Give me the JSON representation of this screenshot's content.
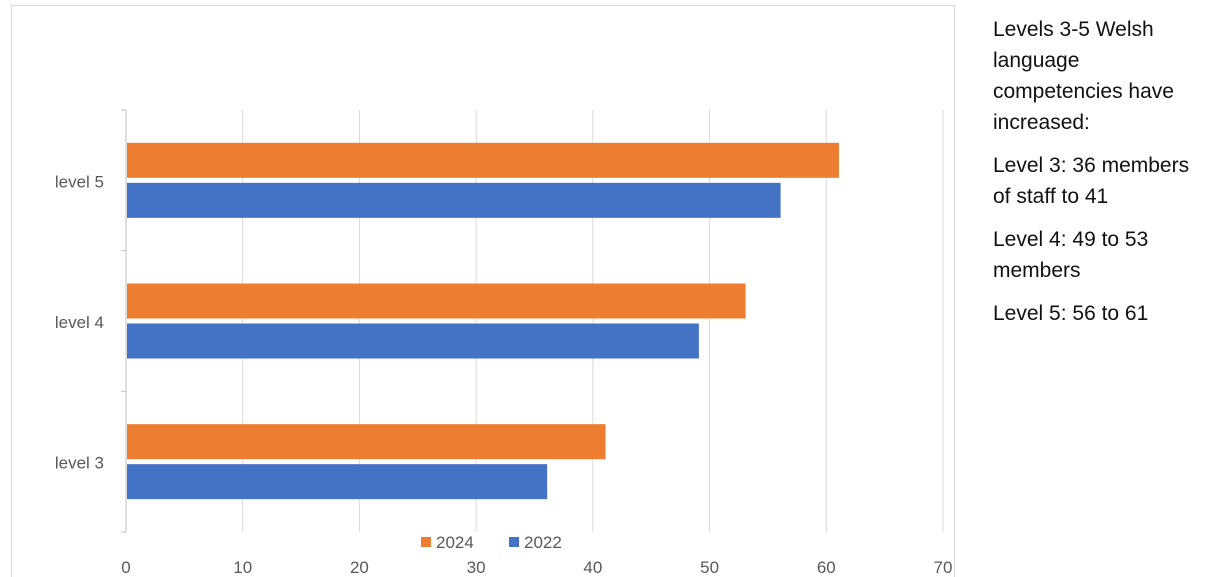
{
  "chart_data": {
    "type": "bar",
    "orientation": "horizontal",
    "categories": [
      "level 3",
      "level 4",
      "level 5"
    ],
    "series": [
      {
        "name": "2024",
        "values": [
          41,
          53,
          61
        ],
        "color": "#ed7d31"
      },
      {
        "name": "2022",
        "values": [
          36,
          49,
          56
        ],
        "color": "#4472c4"
      }
    ],
    "xlim": [
      0,
      70
    ],
    "xticks": [
      0,
      10,
      20,
      30,
      40,
      50,
      60,
      70
    ],
    "grid": true,
    "legend": "bottom"
  },
  "side_text": {
    "heading": "Levels 3-5 Welsh language competencies have increased:",
    "items": [
      "Level 3: 36 members of staff to 41",
      "Level 4: 49 to 53 members",
      "Level 5: 56 to 61"
    ]
  }
}
